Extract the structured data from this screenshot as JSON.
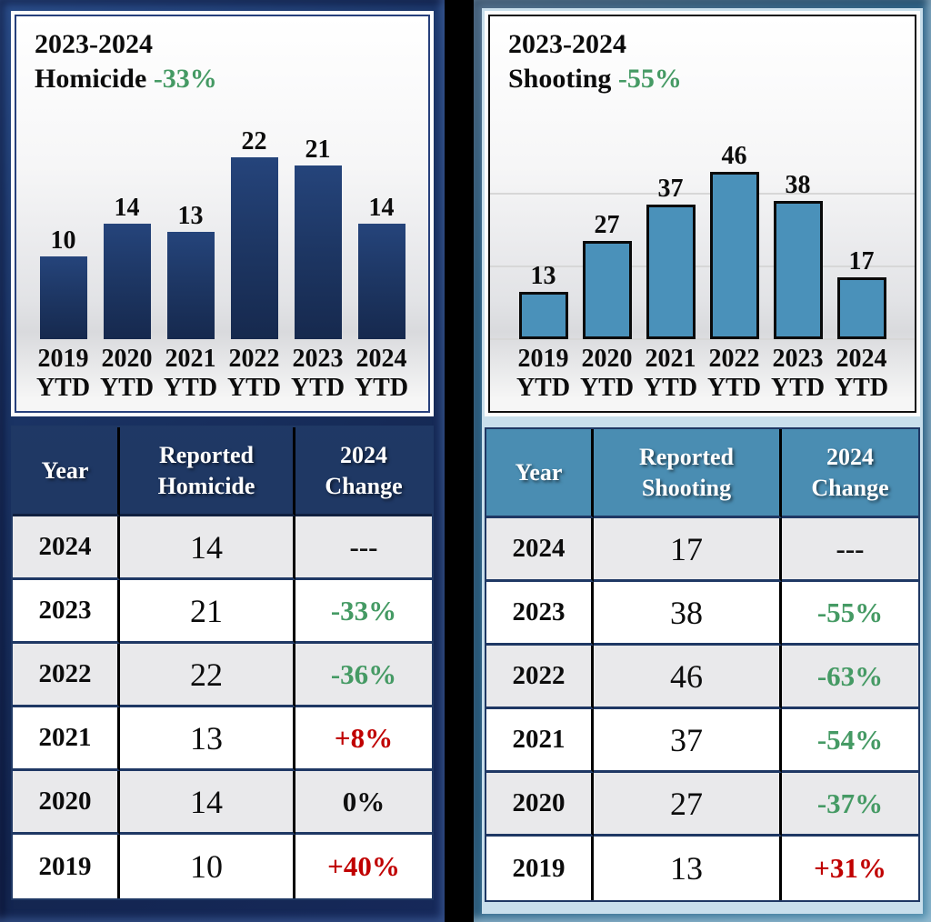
{
  "page": {
    "background_color": "#000000"
  },
  "colors": {
    "green": "#459a64",
    "red": "#c00000",
    "neutral": "#111111",
    "navy": "#1f3864",
    "steel_header": "#4a8db2",
    "steel_bar": "#4a91ba",
    "row_alt": "#e9e9eb"
  },
  "chart_data": [
    {
      "type": "bar",
      "title": "2023-2024 Homicide -33%",
      "categories": [
        "2019 YTD",
        "2020 YTD",
        "2021 YTD",
        "2022 YTD",
        "2023 YTD",
        "2024 YTD"
      ],
      "values": [
        10,
        14,
        13,
        22,
        21,
        14
      ],
      "bar_color": "#1f3864",
      "data_labels": true,
      "grid": false,
      "gridline_values": [],
      "legend": "none",
      "xlabel": "",
      "ylabel": ""
    },
    {
      "type": "bar",
      "title": "2023-2024 Shooting -55%",
      "categories": [
        "2019 YTD",
        "2020 YTD",
        "2021 YTD",
        "2022 YTD",
        "2023 YTD",
        "2024 YTD"
      ],
      "values": [
        13,
        27,
        37,
        46,
        38,
        17
      ],
      "bar_color": "#4a91ba",
      "data_labels": true,
      "grid": true,
      "gridline_values": [
        20,
        40
      ],
      "legend": "none",
      "xlabel": "",
      "ylabel": ""
    }
  ],
  "panels": [
    {
      "title_line1": "2023-2024",
      "metric": "Homicide",
      "change_pct": "-33%",
      "table": {
        "headers": [
          [
            "Year"
          ],
          [
            "Reported",
            "Homicide"
          ],
          [
            "2024",
            "Change"
          ]
        ],
        "rows": [
          {
            "year": "2024",
            "count": "14",
            "change": "---",
            "change_color": "neutral"
          },
          {
            "year": "2023",
            "count": "21",
            "change": "-33%",
            "change_color": "green"
          },
          {
            "year": "2022",
            "count": "22",
            "change": "-36%",
            "change_color": "green"
          },
          {
            "year": "2021",
            "count": "13",
            "change": "+8%",
            "change_color": "red"
          },
          {
            "year": "2020",
            "count": "14",
            "change": "0%",
            "change_color": "neutral"
          },
          {
            "year": "2019",
            "count": "10",
            "change": "+40%",
            "change_color": "red"
          }
        ]
      }
    },
    {
      "title_line1": "2023-2024",
      "metric": "Shooting",
      "change_pct": "-55%",
      "table": {
        "headers": [
          [
            "Year"
          ],
          [
            "Reported",
            "Shooting"
          ],
          [
            "2024",
            "Change"
          ]
        ],
        "rows": [
          {
            "year": "2024",
            "count": "17",
            "change": "---",
            "change_color": "neutral"
          },
          {
            "year": "2023",
            "count": "38",
            "change": "-55%",
            "change_color": "green"
          },
          {
            "year": "2022",
            "count": "46",
            "change": "-63%",
            "change_color": "green"
          },
          {
            "year": "2021",
            "count": "37",
            "change": "-54%",
            "change_color": "green"
          },
          {
            "year": "2020",
            "count": "27",
            "change": "-37%",
            "change_color": "green"
          },
          {
            "year": "2019",
            "count": "13",
            "change": "+31%",
            "change_color": "red"
          }
        ]
      }
    }
  ]
}
